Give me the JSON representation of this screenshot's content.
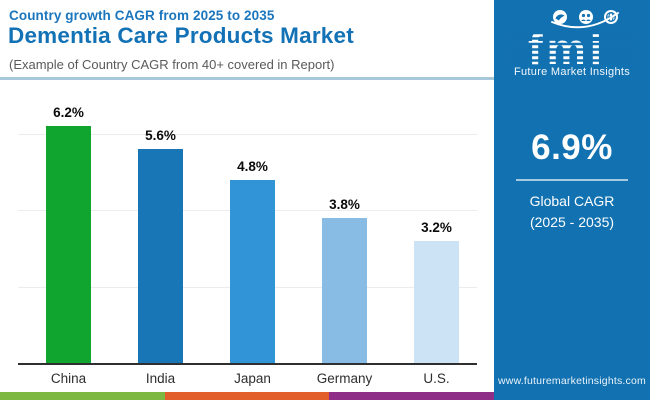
{
  "header": {
    "kicker": "Country growth CAGR from 2025 to 2035",
    "title": "Dementia Care Products Market",
    "subtitle": "(Example of Country CAGR from 40+ covered in Report)"
  },
  "chart_data": {
    "type": "bar",
    "categories": [
      "China",
      "India",
      "Japan",
      "Germany",
      "U.S."
    ],
    "values": [
      6.2,
      5.6,
      4.8,
      3.8,
      3.2
    ],
    "labels": [
      "6.2%",
      "5.6%",
      "4.8%",
      "3.8%",
      "3.2%"
    ],
    "bar_colors": [
      "#10A52E",
      "#1876B7",
      "#3194D6",
      "#88BCE4",
      "#CBE3F5"
    ],
    "title": "Dementia Care Products Market",
    "xlabel": "",
    "ylabel": "",
    "ylim": [
      0,
      6.6
    ],
    "gridlines": [
      2,
      4,
      6
    ],
    "grid": true,
    "legend": false,
    "value_suffix": "%"
  },
  "sidebar": {
    "bg_color": "#1271B1",
    "logo": {
      "text": "fmi",
      "tagline": "Future Market Insights",
      "icons": [
        "dove-icon",
        "people-icon",
        "globe-icon"
      ]
    },
    "stat_value": "6.9%",
    "stat_label_line1": "Global CAGR",
    "stat_label_line2": "(2025 - 2035)",
    "website": "www.futuremarketinsights.com"
  },
  "footer": {
    "stripe_colors": [
      "#7CB842",
      "#E25F2B",
      "#8E2E86"
    ]
  }
}
